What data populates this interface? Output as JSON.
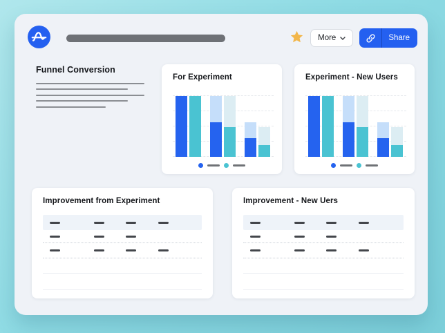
{
  "window": {
    "background": "#eff2f7"
  },
  "toolbar": {
    "logo": {
      "icon": "amplitude-logo",
      "color": "#2460f0"
    },
    "favorite": {
      "icon": "star",
      "color": "#f2b64a"
    },
    "more": {
      "label": "More",
      "chevron_icon": "chevron-down"
    },
    "share": {
      "label": "Share",
      "icon": "link",
      "color": "#2460f0"
    }
  },
  "funnel_section": {
    "title": "Funnel Conversion",
    "placeholder_lines": [
      157,
      133,
      157,
      133,
      101
    ]
  },
  "chart_data": [
    {
      "type": "bar",
      "variant": "funnel",
      "title": "For Experiment",
      "categories": [
        "step-1",
        "step-2",
        "step-3"
      ],
      "series": [
        {
          "name": "series-blue",
          "color": "#2563ef",
          "remainder_color": "#c5defa",
          "values": [
            100,
            57,
            31
          ]
        },
        {
          "name": "series-teal",
          "color": "#4ac3d2",
          "remainder_color": "#dcedf3",
          "values": [
            100,
            49,
            19
          ]
        }
      ],
      "ylim": [
        0,
        100
      ],
      "grid": true,
      "gridline_positions": [
        0,
        25,
        50,
        75,
        100
      ],
      "legend_position": "bottom"
    },
    {
      "type": "bar",
      "variant": "funnel",
      "title": "Experiment - New Users",
      "categories": [
        "step-1",
        "step-2",
        "step-3"
      ],
      "series": [
        {
          "name": "series-blue",
          "color": "#2563ef",
          "remainder_color": "#c5defa",
          "values": [
            100,
            57,
            31
          ]
        },
        {
          "name": "series-teal",
          "color": "#4ac3d2",
          "remainder_color": "#dcedf3",
          "values": [
            100,
            49,
            19
          ]
        }
      ],
      "ylim": [
        0,
        100
      ],
      "grid": true,
      "gridline_positions": [
        0,
        25,
        50,
        75,
        100
      ],
      "legend_position": "bottom"
    }
  ],
  "tables": [
    {
      "title": "Improvement from Experiment",
      "header_cells": [
        true,
        true,
        true,
        true
      ],
      "rows": [
        {
          "cells": [
            true,
            true,
            true,
            false
          ]
        },
        {
          "cells": [
            true,
            true,
            true,
            true
          ]
        },
        {
          "cells": [
            false,
            false,
            false,
            false
          ]
        },
        {
          "cells": [
            false,
            false,
            false,
            false
          ]
        }
      ],
      "row_divider_styles": [
        "dotted",
        "dotted",
        "solid",
        "solid"
      ]
    },
    {
      "title": "Improvement - New Uers",
      "header_cells": [
        true,
        true,
        true,
        true
      ],
      "rows": [
        {
          "cells": [
            true,
            true,
            true,
            false
          ]
        },
        {
          "cells": [
            true,
            true,
            true,
            true
          ]
        },
        {
          "cells": [
            false,
            false,
            false,
            false
          ]
        },
        {
          "cells": [
            false,
            false,
            false,
            false
          ]
        }
      ],
      "row_divider_styles": [
        "dotted",
        "dotted",
        "solid",
        "solid"
      ]
    }
  ]
}
